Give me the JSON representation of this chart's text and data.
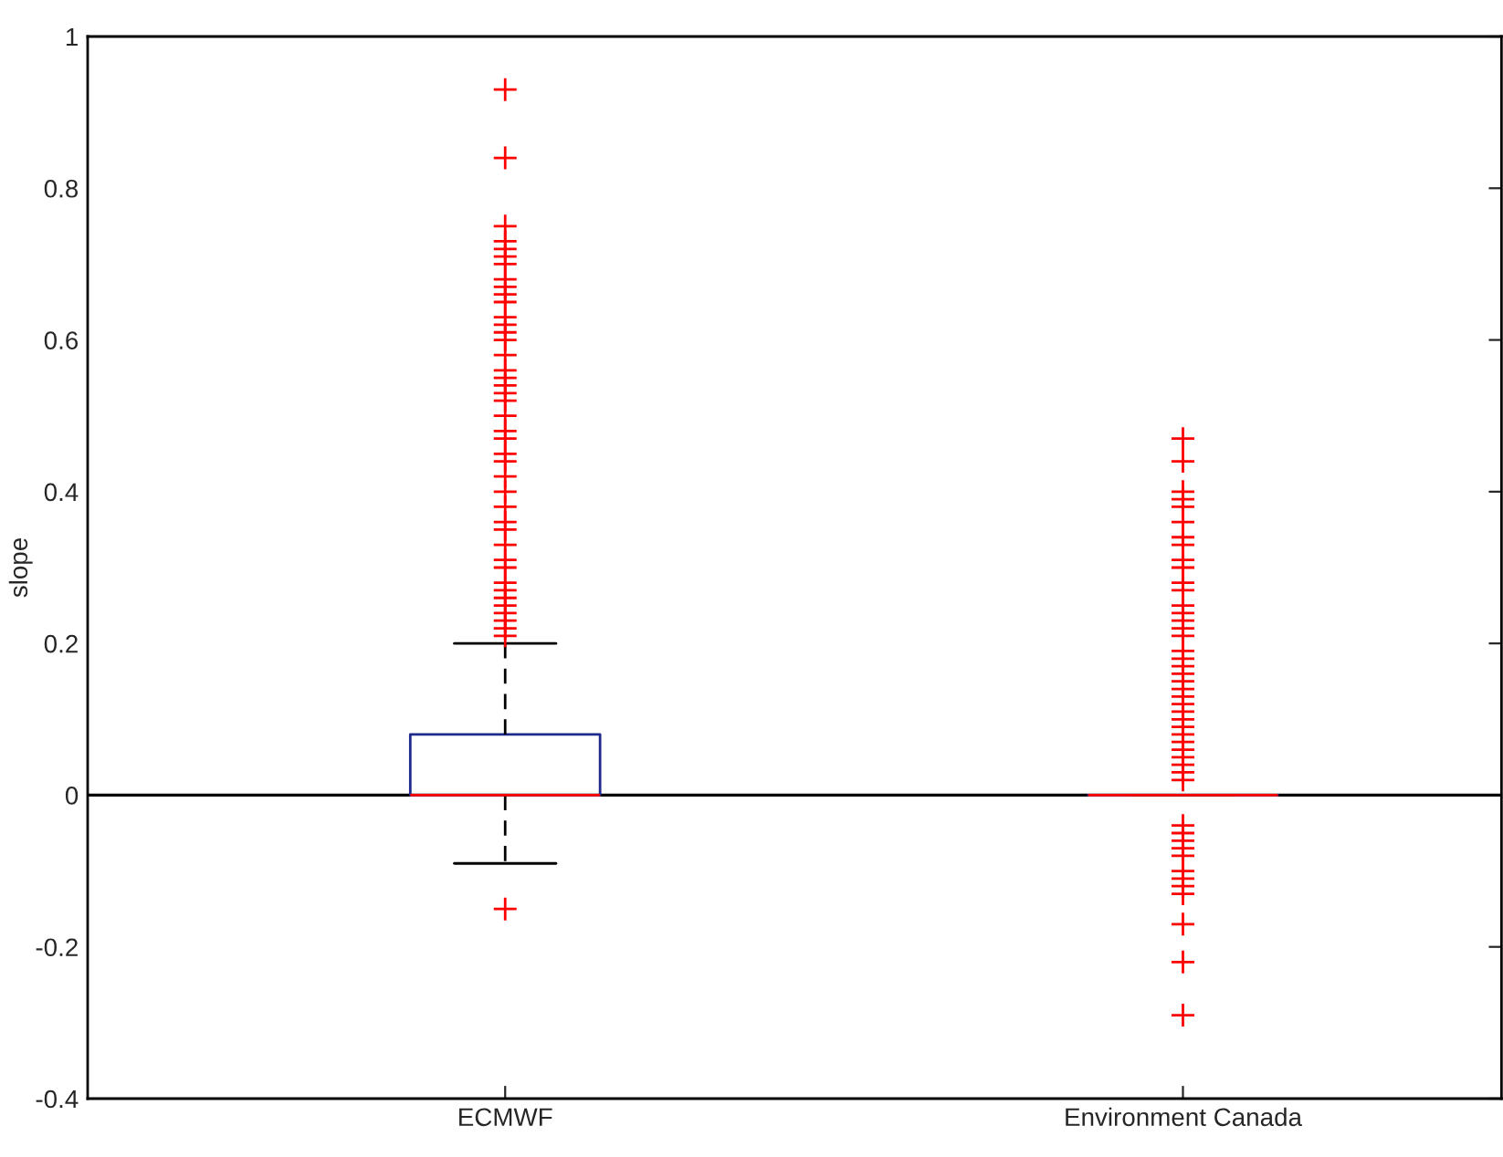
{
  "chart_data": {
    "type": "box",
    "ylabel": "slope",
    "categories": [
      "ECMWF",
      "Environment Canada"
    ],
    "ylim": [
      -0.4,
      1
    ],
    "yticks": [
      -0.4,
      -0.2,
      0,
      0.2,
      0.4,
      0.6,
      0.8,
      1
    ],
    "marker": "cross",
    "grid": false,
    "ref_lines": [
      {
        "axis": "y",
        "value": 0,
        "color": "#000000"
      }
    ],
    "series": [
      {
        "color": "#1f2a8c",
        "boxes": [
          {
            "low": -0.09,
            "q1": 0.0,
            "median": 0.0,
            "q3": 0.08,
            "high": 0.2,
            "outliers": [
              -0.15,
              0.21,
              0.22,
              0.23,
              0.24,
              0.25,
              0.26,
              0.27,
              0.28,
              0.3,
              0.31,
              0.33,
              0.35,
              0.36,
              0.38,
              0.4,
              0.42,
              0.44,
              0.45,
              0.47,
              0.48,
              0.5,
              0.52,
              0.53,
              0.54,
              0.55,
              0.56,
              0.58,
              0.6,
              0.61,
              0.62,
              0.63,
              0.65,
              0.66,
              0.67,
              0.68,
              0.7,
              0.71,
              0.72,
              0.73,
              0.75,
              0.84,
              0.93
            ]
          },
          {
            "low": 0.0,
            "q1": 0.0,
            "median": 0.0,
            "q3": 0.0,
            "high": 0.0,
            "outliers": [
              -0.29,
              -0.22,
              -0.17,
              -0.13,
              -0.12,
              -0.11,
              -0.1,
              -0.08,
              -0.07,
              -0.06,
              -0.05,
              -0.04,
              0.02,
              0.03,
              0.04,
              0.05,
              0.06,
              0.07,
              0.08,
              0.09,
              0.1,
              0.11,
              0.12,
              0.13,
              0.14,
              0.15,
              0.16,
              0.17,
              0.18,
              0.19,
              0.21,
              0.22,
              0.23,
              0.24,
              0.25,
              0.27,
              0.28,
              0.3,
              0.31,
              0.33,
              0.34,
              0.36,
              0.38,
              0.39,
              0.4,
              0.44,
              0.47
            ]
          }
        ]
      }
    ]
  }
}
